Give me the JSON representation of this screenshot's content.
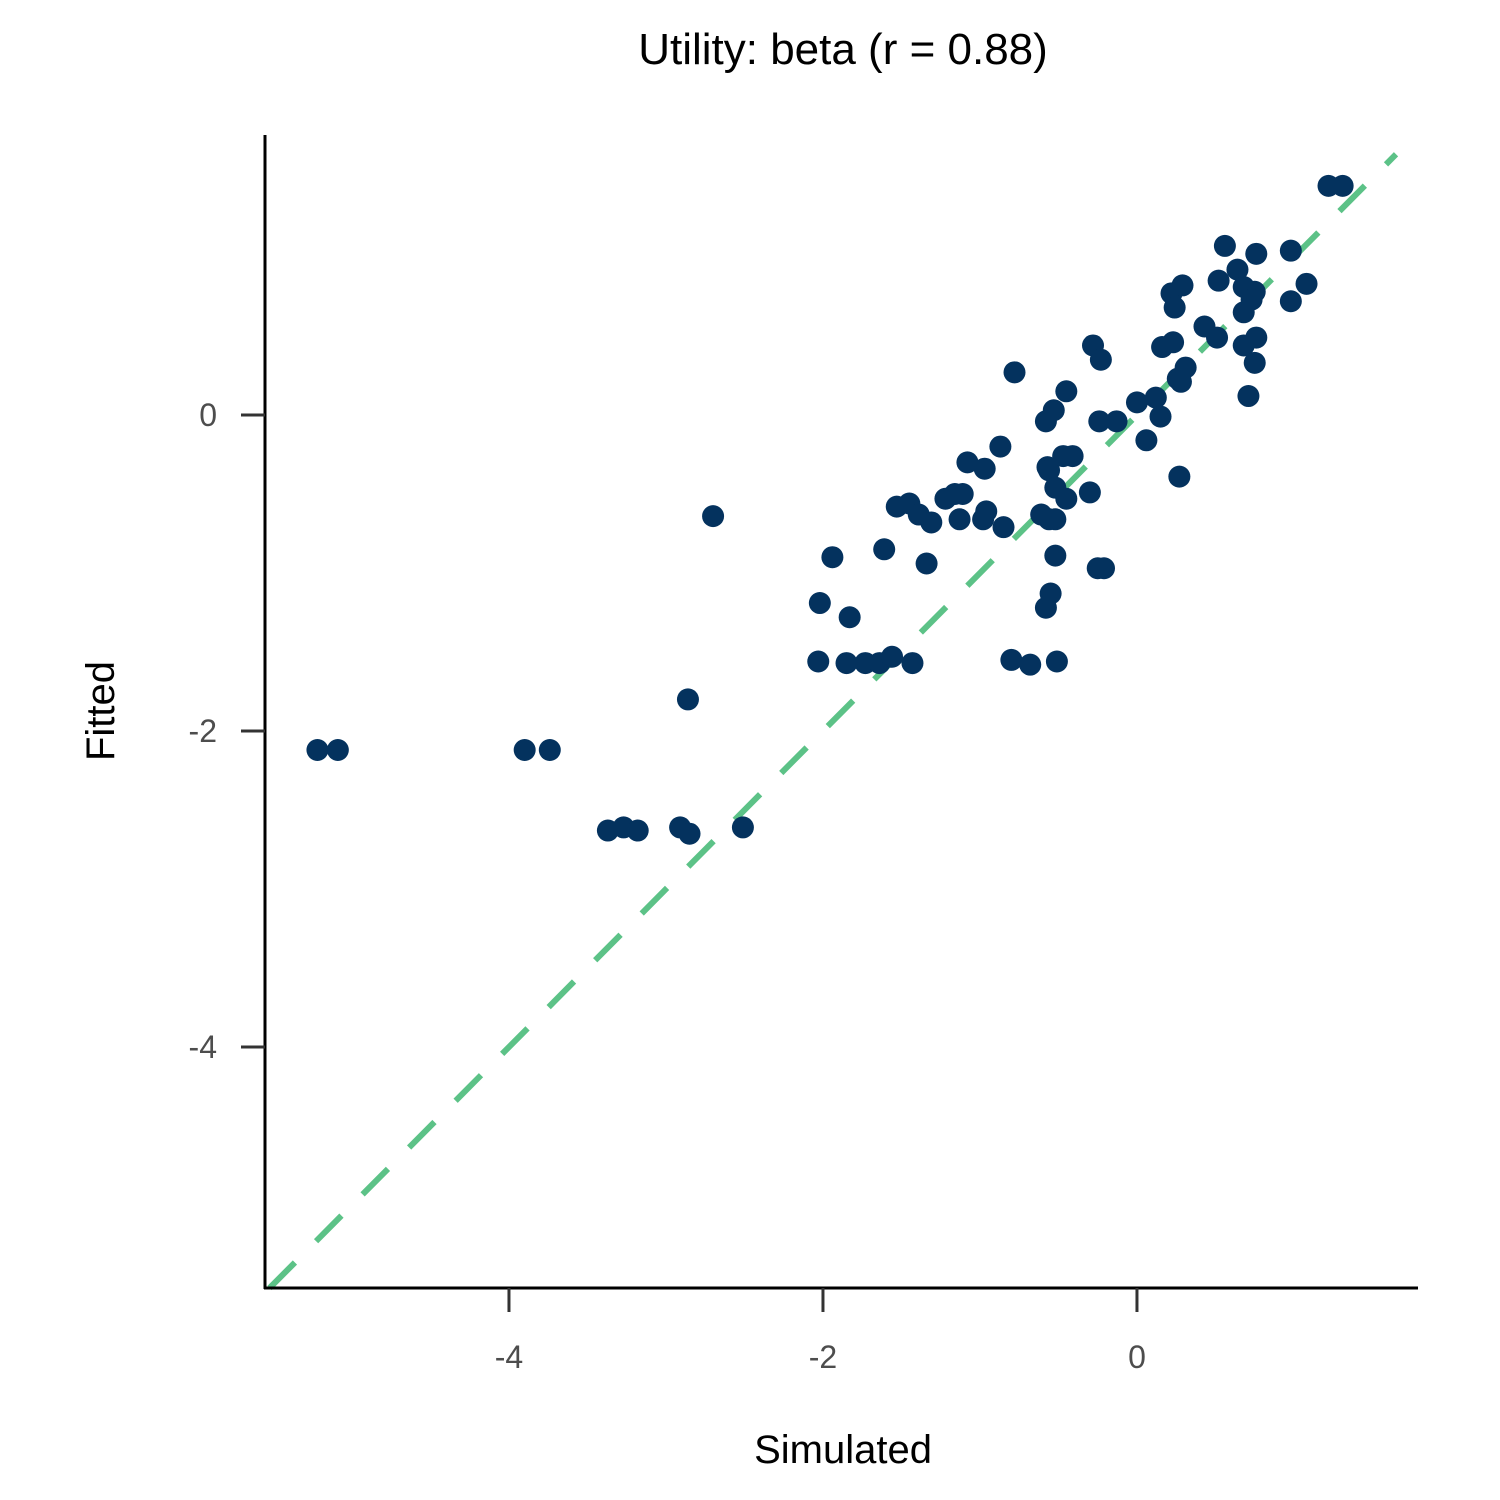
{
  "chart_data": {
    "type": "scatter",
    "title": "Utility: beta (r = 0.88)",
    "xlabel": "Simulated",
    "ylabel": "Fitted",
    "xlim": [
      -5.554,
      1.79
    ],
    "ylim": [
      -5.525,
      1.772
    ],
    "xticks": [
      {
        "value": -4,
        "label": "-4"
      },
      {
        "value": -2,
        "label": "-2"
      },
      {
        "value": 0,
        "label": "0"
      }
    ],
    "yticks": [
      {
        "value": 0,
        "label": "0"
      },
      {
        "value": -2,
        "label": "-2"
      },
      {
        "value": -4,
        "label": "-4"
      }
    ],
    "grid": false,
    "point_color": "#04325e",
    "reference_line": {
      "type": "identity",
      "style": "dashed",
      "color": "#5cc287"
    },
    "points": [
      [
        -5.22,
        -2.12
      ],
      [
        -5.09,
        -2.12
      ],
      [
        -3.9,
        -2.12
      ],
      [
        -3.74,
        -2.12
      ],
      [
        -3.37,
        -2.63
      ],
      [
        -3.27,
        -2.61
      ],
      [
        -3.18,
        -2.63
      ],
      [
        -2.91,
        -2.61
      ],
      [
        -2.85,
        -2.65
      ],
      [
        -2.51,
        -2.61
      ],
      [
        -2.86,
        -1.8
      ],
      [
        -2.7,
        -0.64
      ],
      [
        -2.03,
        -1.56
      ],
      [
        -1.85,
        -1.57
      ],
      [
        -2.02,
        -1.19
      ],
      [
        -1.83,
        -1.28
      ],
      [
        -1.94,
        -0.9
      ],
      [
        -1.73,
        -1.57
      ],
      [
        -1.64,
        -1.57
      ],
      [
        -1.56,
        -1.53
      ],
      [
        -1.43,
        -1.57
      ],
      [
        -1.61,
        -0.85
      ],
      [
        -1.34,
        -0.94
      ],
      [
        -1.53,
        -0.58
      ],
      [
        -1.45,
        -0.56
      ],
      [
        -1.39,
        -0.63
      ],
      [
        -1.31,
        -0.68
      ],
      [
        -1.22,
        -0.53
      ],
      [
        -1.16,
        -0.5
      ],
      [
        -1.11,
        -0.5
      ],
      [
        -1.13,
        -0.66
      ],
      [
        -1.08,
        -0.3
      ],
      [
        -0.97,
        -0.34
      ],
      [
        -0.98,
        -0.66
      ],
      [
        -0.96,
        -0.61
      ],
      [
        -0.85,
        -0.71
      ],
      [
        -0.87,
        -0.2
      ],
      [
        -0.78,
        0.27
      ],
      [
        -0.8,
        -1.55
      ],
      [
        -0.68,
        -1.58
      ],
      [
        -0.51,
        -1.56
      ],
      [
        -0.58,
        -1.22
      ],
      [
        -0.55,
        -1.13
      ],
      [
        -0.52,
        -0.89
      ],
      [
        -0.61,
        -0.63
      ],
      [
        -0.52,
        -0.66
      ],
      [
        -0.56,
        -0.66
      ],
      [
        -0.57,
        -0.33
      ],
      [
        -0.56,
        -0.35
      ],
      [
        -0.52,
        -0.46
      ],
      [
        -0.45,
        -0.53
      ],
      [
        -0.47,
        -0.26
      ],
      [
        -0.41,
        -0.26
      ],
      [
        -0.58,
        -0.04
      ],
      [
        -0.53,
        0.03
      ],
      [
        -0.45,
        0.15
      ],
      [
        -0.3,
        -0.49
      ],
      [
        -0.25,
        -0.97
      ],
      [
        -0.21,
        -0.97
      ],
      [
        -0.28,
        0.44
      ],
      [
        -0.23,
        0.35
      ],
      [
        -0.24,
        -0.04
      ],
      [
        -0.13,
        -0.04
      ],
      [
        0.0,
        0.08
      ],
      [
        0.06,
        -0.16
      ],
      [
        0.12,
        0.11
      ],
      [
        0.15,
        -0.01
      ],
      [
        0.16,
        0.43
      ],
      [
        0.23,
        0.46
      ],
      [
        0.27,
        -0.39
      ],
      [
        0.26,
        0.23
      ],
      [
        0.28,
        0.21
      ],
      [
        0.31,
        0.3
      ],
      [
        0.22,
        0.77
      ],
      [
        0.29,
        0.82
      ],
      [
        0.24,
        0.68
      ],
      [
        0.43,
        0.56
      ],
      [
        0.51,
        0.49
      ],
      [
        0.52,
        0.85
      ],
      [
        0.56,
        1.07
      ],
      [
        0.64,
        0.92
      ],
      [
        0.68,
        0.65
      ],
      [
        0.68,
        0.44
      ],
      [
        0.68,
        0.81
      ],
      [
        0.75,
        0.78
      ],
      [
        0.73,
        0.73
      ],
      [
        0.76,
        1.02
      ],
      [
        0.76,
        0.49
      ],
      [
        0.75,
        0.33
      ],
      [
        0.71,
        0.12
      ],
      [
        0.98,
        1.04
      ],
      [
        0.98,
        0.72
      ],
      [
        1.08,
        0.83
      ],
      [
        1.22,
        1.45
      ],
      [
        1.31,
        1.45
      ]
    ]
  }
}
